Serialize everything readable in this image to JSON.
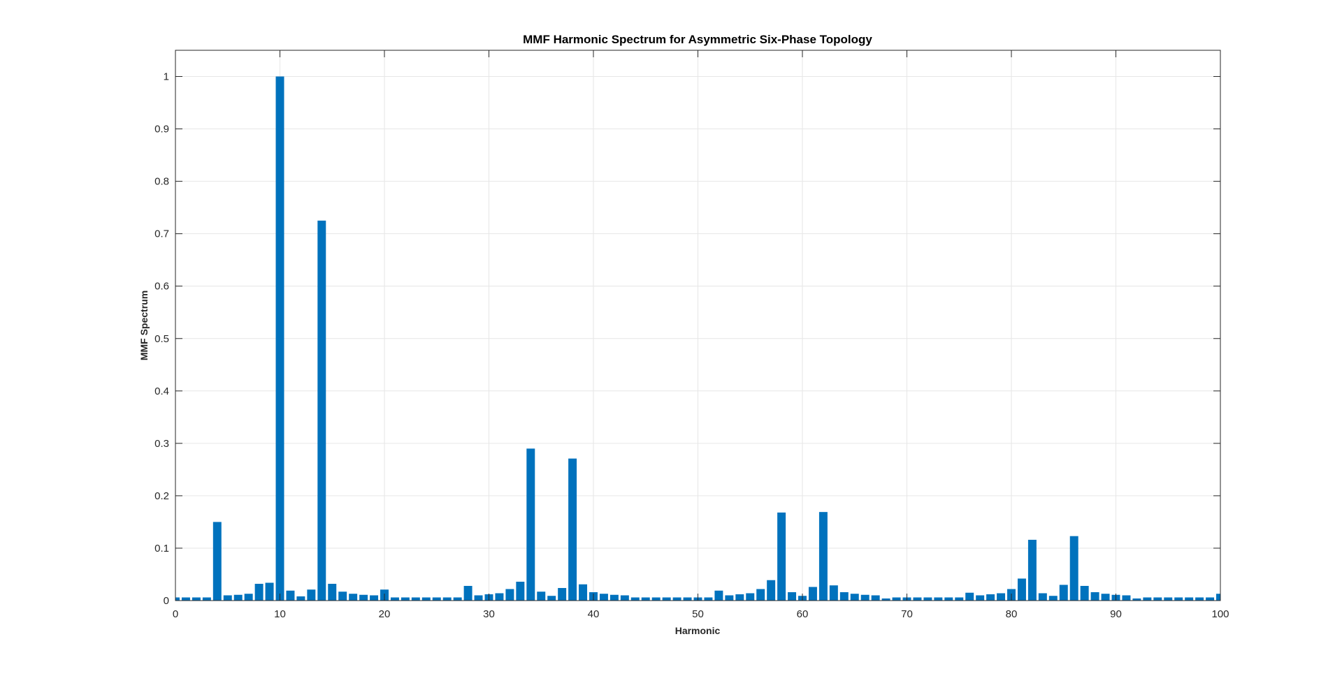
{
  "chart_data": {
    "type": "bar",
    "title": "MMF Harmonic Spectrum for Asymmetric Six-Phase Topology",
    "xlabel": "Harmonic",
    "ylabel": "MMF Spectrum",
    "xlim": [
      0,
      100
    ],
    "ylim": [
      0,
      1.05
    ],
    "x_ticks": [
      "0",
      "10",
      "20",
      "30",
      "40",
      "50",
      "60",
      "70",
      "80",
      "90",
      "100"
    ],
    "y_ticks": [
      "0",
      "0.1",
      "0.2",
      "0.3",
      "0.4",
      "0.5",
      "0.6",
      "0.7",
      "0.8",
      "0.9",
      "1"
    ],
    "grid": true,
    "bar_color": "#0072BD",
    "x": [
      0,
      1,
      2,
      3,
      4,
      5,
      6,
      7,
      8,
      9,
      10,
      11,
      12,
      13,
      14,
      15,
      16,
      17,
      18,
      19,
      20,
      21,
      22,
      23,
      24,
      25,
      26,
      27,
      28,
      29,
      30,
      31,
      32,
      33,
      34,
      35,
      36,
      37,
      38,
      39,
      40,
      41,
      42,
      43,
      44,
      45,
      46,
      47,
      48,
      49,
      50,
      51,
      52,
      53,
      54,
      55,
      56,
      57,
      58,
      59,
      60,
      61,
      62,
      63,
      64,
      65,
      66,
      67,
      68,
      69,
      70,
      71,
      72,
      73,
      74,
      75,
      76,
      77,
      78,
      79,
      80,
      81,
      82,
      83,
      84,
      85,
      86,
      87,
      88,
      89,
      90,
      91,
      92,
      93,
      94,
      95,
      96,
      97,
      98,
      99,
      100
    ],
    "values": [
      0.006,
      0.006,
      0.006,
      0.006,
      0.15,
      0.01,
      0.011,
      0.013,
      0.032,
      0.034,
      1.0,
      0.019,
      0.008,
      0.021,
      0.725,
      0.032,
      0.017,
      0.013,
      0.011,
      0.01,
      0.021,
      0.006,
      0.006,
      0.006,
      0.006,
      0.006,
      0.006,
      0.006,
      0.028,
      0.01,
      0.012,
      0.014,
      0.022,
      0.036,
      0.29,
      0.017,
      0.009,
      0.024,
      0.271,
      0.031,
      0.016,
      0.013,
      0.011,
      0.01,
      0.006,
      0.006,
      0.006,
      0.006,
      0.006,
      0.006,
      0.006,
      0.006,
      0.019,
      0.01,
      0.012,
      0.014,
      0.022,
      0.039,
      0.168,
      0.016,
      0.009,
      0.026,
      0.169,
      0.029,
      0.016,
      0.013,
      0.011,
      0.01,
      0.004,
      0.006,
      0.006,
      0.006,
      0.006,
      0.006,
      0.006,
      0.006,
      0.015,
      0.01,
      0.012,
      0.014,
      0.022,
      0.042,
      0.116,
      0.014,
      0.009,
      0.03,
      0.123,
      0.028,
      0.016,
      0.013,
      0.011,
      0.01,
      0.004,
      0.006,
      0.006,
      0.006,
      0.006,
      0.006,
      0.006,
      0.006,
      0.013
    ]
  }
}
